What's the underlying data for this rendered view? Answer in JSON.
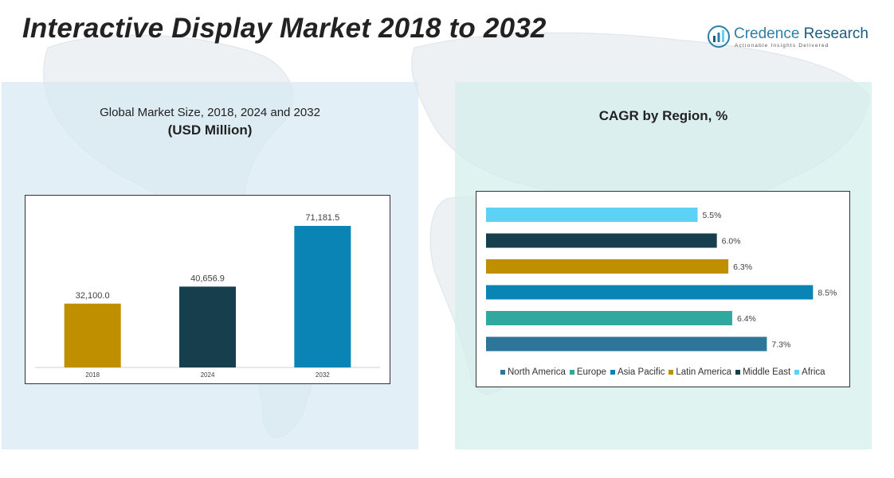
{
  "page": {
    "title": "Interactive Display Market 2018 to 2032"
  },
  "logo": {
    "name_part1": "Credence",
    "name_part2": "Research",
    "tagline": "Actionable Insights Delivered"
  },
  "left_panel": {
    "subtitle_line1": "Global Market Size, 2018, 2024 and 2032",
    "subtitle_line2": "(USD Million)"
  },
  "right_panel": {
    "subtitle": "CAGR by Region, %"
  },
  "chart_data": [
    {
      "type": "bar",
      "orientation": "vertical",
      "categories": [
        "2018",
        "2024",
        "2032"
      ],
      "values": [
        32100.0,
        40656.9,
        71181.5
      ],
      "value_labels": [
        "32,100.0",
        "40,656.9",
        "71,181.5"
      ],
      "colors": [
        "#bf8f00",
        "#163e4d",
        "#0a83b5"
      ],
      "ylim": [
        0,
        80000
      ],
      "grid": false,
      "legend": false
    },
    {
      "type": "bar",
      "orientation": "horizontal",
      "categories": [
        "Africa",
        "Middle East",
        "Latin America",
        "Asia Pacific",
        "Europe",
        "North America"
      ],
      "values": [
        5.5,
        6.0,
        6.3,
        8.5,
        6.4,
        7.3
      ],
      "value_labels": [
        "5.5%",
        "6.0%",
        "6.3%",
        "8.5%",
        "6.4%",
        "7.3%"
      ],
      "colors": [
        "#5ed2f6",
        "#163e4d",
        "#bf8f00",
        "#0a83b5",
        "#30a8a0",
        "#2e7699"
      ],
      "xlim": [
        0,
        8.7
      ],
      "grid": false,
      "legend": "bottom",
      "legend_order": [
        "North America",
        "Europe",
        "Asia Pacific",
        "Latin America",
        "Middle East",
        "Africa"
      ]
    }
  ]
}
